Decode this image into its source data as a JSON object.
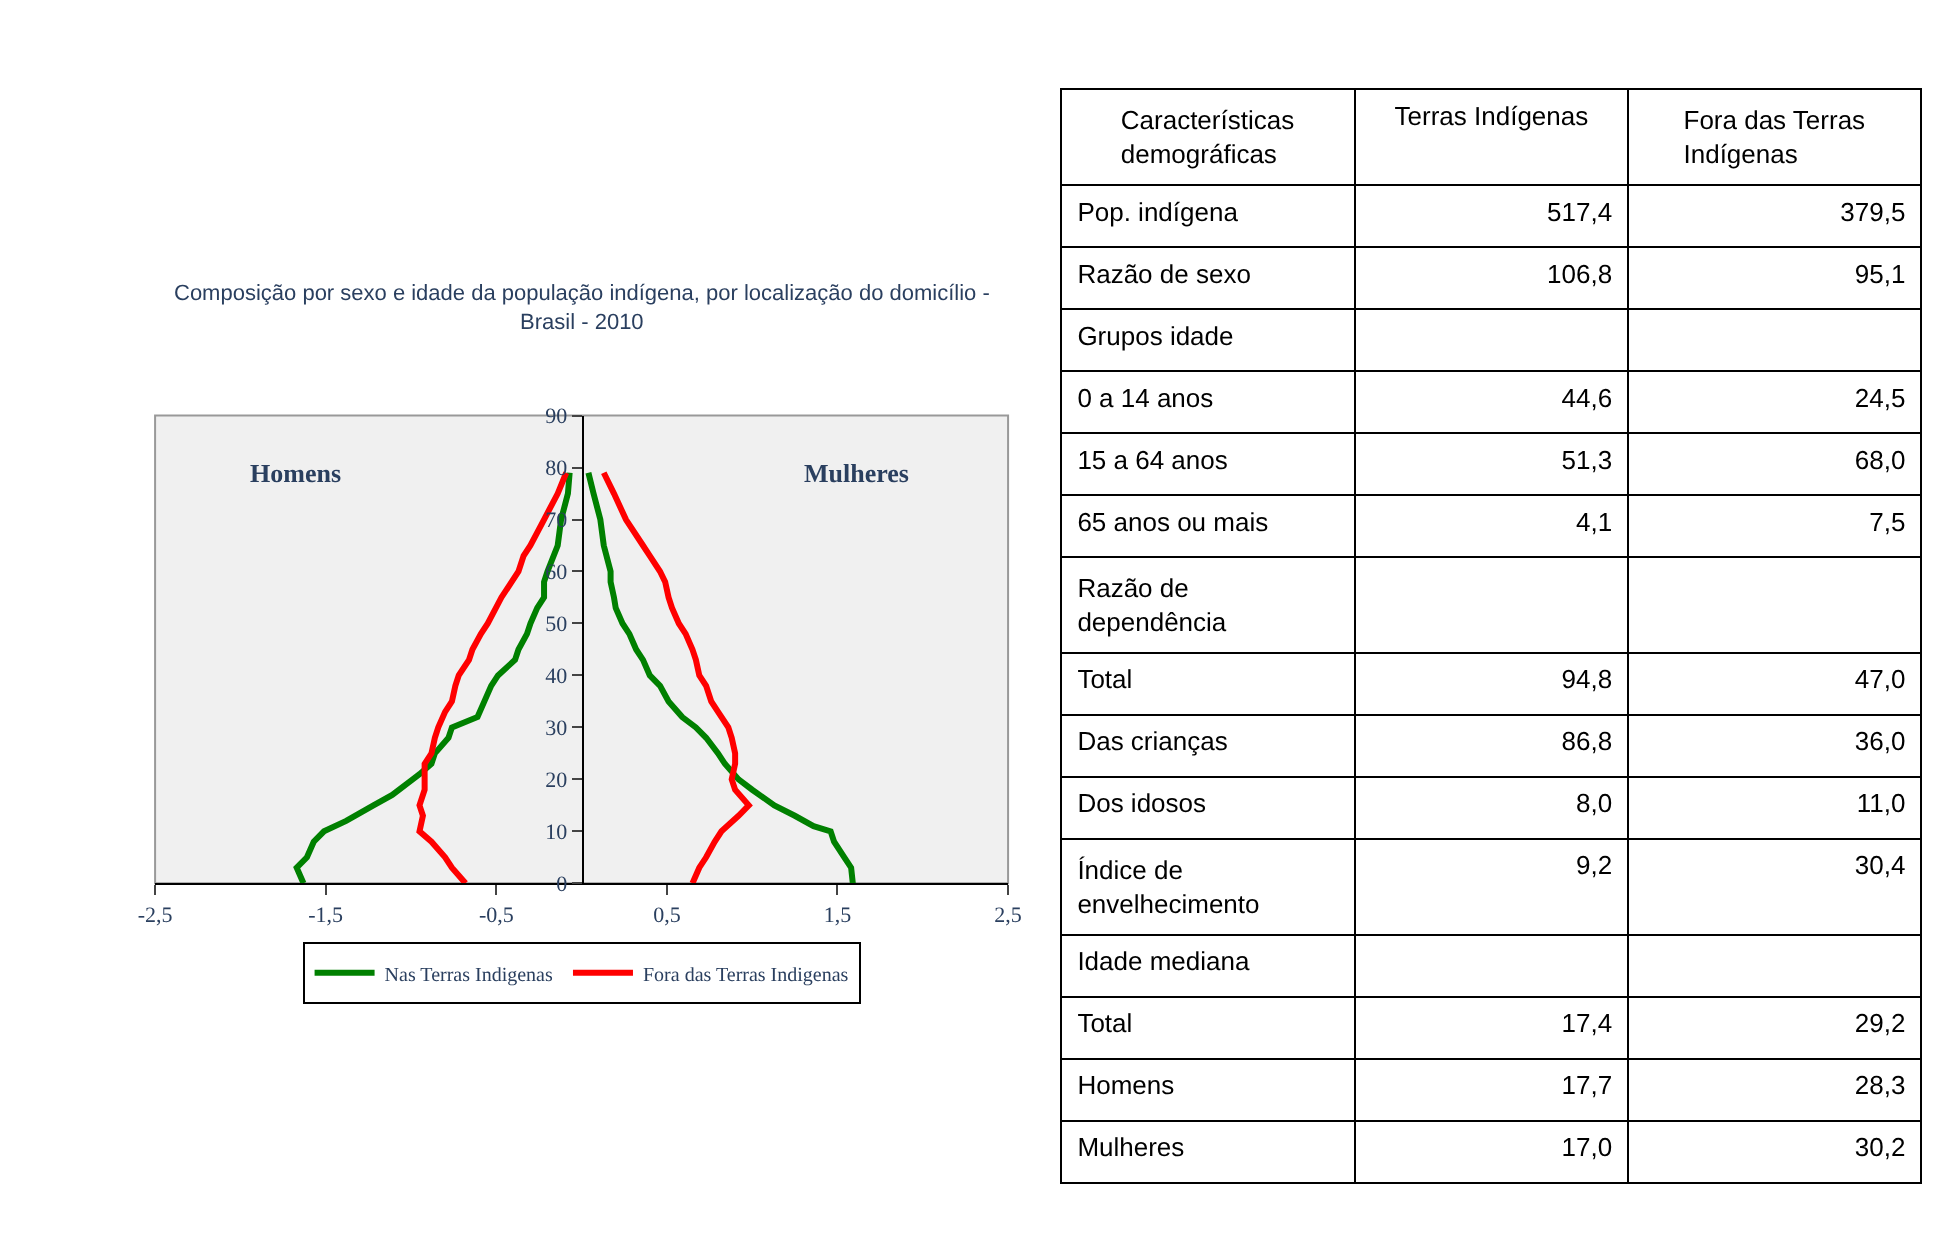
{
  "chart_data": [
    {
      "type": "line",
      "title": "Composição por sexo e idade da população indígena, por localização do domicílio - Brasil - 2010",
      "annotations": [
        "Homens",
        "Mulheres"
      ],
      "xlim": [
        -2.5,
        2.5
      ],
      "xticks": [
        {
          "value": -2.5,
          "label": "-2,5"
        },
        {
          "value": -1.5,
          "label": "-1,5"
        },
        {
          "value": -0.5,
          "label": "-0,5"
        },
        {
          "value": 0.5,
          "label": "0,5"
        },
        {
          "value": 1.5,
          "label": "1,5"
        },
        {
          "value": 2.5,
          "label": "2,5"
        }
      ],
      "ylim": [
        0,
        90
      ],
      "yticks": [
        0,
        10,
        20,
        30,
        40,
        50,
        60,
        70,
        80,
        90
      ],
      "grid": false,
      "legend": "bottom",
      "marker": "none",
      "line_style": "solid",
      "series": [
        {
          "name": "Nas Terras Indigenas",
          "color": "#008000",
          "x": [
            -1.63,
            -1.67,
            -1.61,
            -1.57,
            -1.51,
            -1.38,
            -1.22,
            -1.11,
            -0.99,
            -0.95,
            -0.88,
            -0.86,
            -0.78,
            -0.76,
            -0.61,
            -0.57,
            -0.53,
            -0.49,
            -0.39,
            -0.37,
            -0.32,
            -0.3,
            -0.26,
            -0.22,
            -0.22,
            -0.2,
            -0.14,
            -0.12,
            -0.08,
            -0.07
          ],
          "values": [
            0,
            3,
            5,
            8,
            10,
            12,
            15,
            17,
            20,
            21,
            23,
            25,
            28,
            30,
            32,
            35,
            38,
            40,
            43,
            45,
            48,
            50,
            53,
            55,
            58,
            60,
            65,
            70,
            75,
            79
          ]
        },
        {
          "color": "#008000",
          "x": [
            1.59,
            1.58,
            1.54,
            1.48,
            1.46,
            1.36,
            1.25,
            1.13,
            1.0,
            0.92,
            0.84,
            0.8,
            0.73,
            0.67,
            0.59,
            0.51,
            0.46,
            0.4,
            0.36,
            0.32,
            0.28,
            0.24,
            0.2,
            0.19,
            0.17,
            0.17,
            0.13,
            0.11,
            0.07,
            0.04
          ],
          "values": [
            0,
            3,
            5,
            8,
            10,
            11,
            13,
            15,
            18,
            20,
            23,
            25,
            28,
            30,
            32,
            35,
            38,
            40,
            43,
            45,
            48,
            50,
            53,
            55,
            58,
            60,
            65,
            70,
            75,
            79
          ]
        },
        {
          "name": "Fora das Terras Indigenas",
          "color": "#ff0000",
          "x": [
            -0.68,
            -0.76,
            -0.8,
            -0.88,
            -0.95,
            -0.93,
            -0.95,
            -0.92,
            -0.92,
            -0.92,
            -0.88,
            -0.86,
            -0.84,
            -0.8,
            -0.76,
            -0.74,
            -0.72,
            -0.66,
            -0.64,
            -0.59,
            -0.55,
            -0.47,
            -0.41,
            -0.37,
            -0.34,
            -0.3,
            -0.22,
            -0.14,
            -0.09
          ],
          "values": [
            0,
            3,
            5,
            8,
            10,
            13,
            15,
            18,
            20,
            23,
            25,
            28,
            30,
            33,
            35,
            38,
            40,
            43,
            45,
            48,
            50,
            55,
            58,
            60,
            63,
            65,
            70,
            75,
            79
          ]
        },
        {
          "color": "#ff0000",
          "x": [
            0.65,
            0.69,
            0.73,
            0.78,
            0.82,
            0.92,
            0.98,
            0.9,
            0.88,
            0.9,
            0.9,
            0.88,
            0.86,
            0.8,
            0.76,
            0.73,
            0.69,
            0.67,
            0.65,
            0.61,
            0.57,
            0.53,
            0.51,
            0.49,
            0.46,
            0.4,
            0.36,
            0.26,
            0.19,
            0.13
          ],
          "values": [
            0,
            3,
            5,
            8,
            10,
            13,
            15,
            18,
            20,
            23,
            25,
            28,
            30,
            33,
            35,
            38,
            40,
            43,
            45,
            48,
            50,
            53,
            55,
            58,
            60,
            63,
            65,
            70,
            75,
            79
          ]
        }
      ]
    },
    {
      "type": "other",
      "title": "Características demográficas",
      "categories": [
        "Terras Indígenas",
        "Fora das Terras Indígenas"
      ],
      "y_categories": [
        "Pop. indígena",
        "Razão de sexo",
        "Grupos idade",
        "0 a 14 anos",
        "15 a 64 anos",
        "65 anos ou mais",
        "Razão de dependência",
        "Total",
        "Das crianças",
        "Dos idosos",
        "Índice de envelhecimento",
        "Idade mediana",
        "Total",
        "Homens",
        "Mulheres"
      ],
      "cell_labels": [
        [
          "517,4",
          "379,5"
        ],
        [
          "106,8",
          "95,1"
        ],
        [
          null,
          null
        ],
        [
          "44,6",
          "24,5"
        ],
        [
          "51,3",
          "68,0"
        ],
        [
          "4,1",
          "7,5"
        ],
        [
          null,
          null
        ],
        [
          "94,8",
          "47,0"
        ],
        [
          "86,8",
          "36,0"
        ],
        [
          "8,0",
          "11,0"
        ],
        [
          "9,2",
          "30,4"
        ],
        [
          null,
          null
        ],
        [
          "17,4",
          "29,2"
        ],
        [
          "17,7",
          "28,3"
        ],
        [
          "17,0",
          "30,2"
        ]
      ]
    }
  ]
}
